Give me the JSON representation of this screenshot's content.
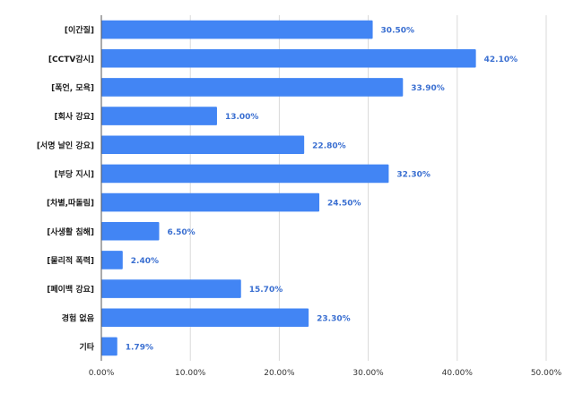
{
  "chart_data": {
    "type": "bar",
    "orientation": "horizontal",
    "categories": [
      "[이간질]",
      "[CCTV감시]",
      "[폭언, 모욕]",
      "[회사 강요]",
      "[서명 날인 강요]",
      "[부당 지시]",
      "[차별,따돌림]",
      "[사생활 침해]",
      "[물리적 폭력]",
      "[페이백 강요]",
      "경험 없음",
      "기타"
    ],
    "values": [
      30.5,
      42.1,
      33.9,
      13.0,
      22.8,
      32.3,
      24.5,
      6.5,
      2.4,
      15.7,
      23.3,
      1.79
    ],
    "value_labels": [
      "30.50%",
      "42.10%",
      "33.90%",
      "13.00%",
      "22.80%",
      "32.30%",
      "24.50%",
      "6.50%",
      "2.40%",
      "15.70%",
      "23.30%",
      "1.79%"
    ],
    "xlim": [
      0,
      50
    ],
    "x_ticks": [
      0,
      10,
      20,
      30,
      40,
      50
    ],
    "x_tick_labels": [
      "0.00%",
      "10.00%",
      "20.00%",
      "30.00%",
      "40.00%",
      "50.00%"
    ],
    "grid": true,
    "bar_color": "#4285f4",
    "value_label_color": "#3a6fd1"
  }
}
